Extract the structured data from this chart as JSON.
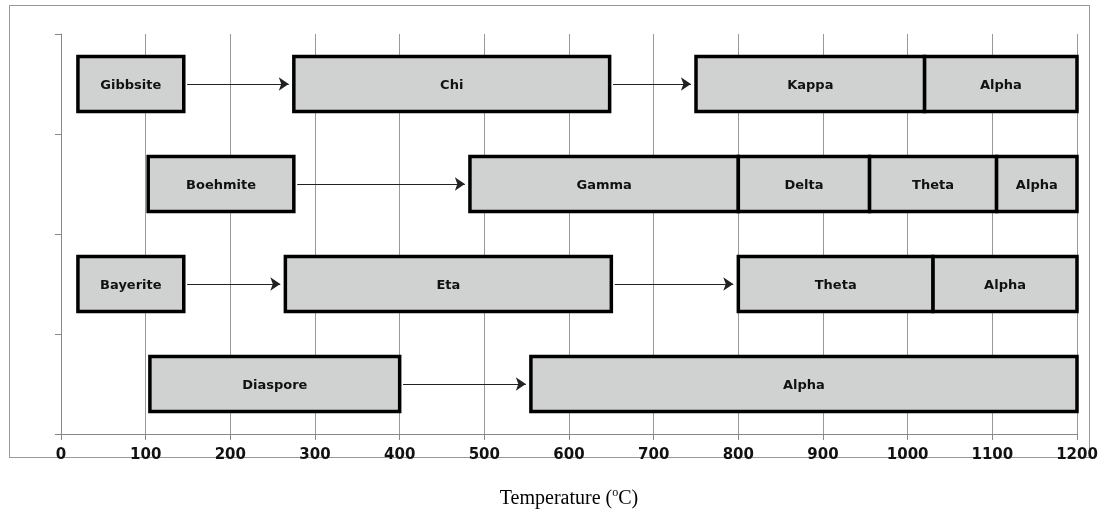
{
  "chart_data": {
    "type": "bar",
    "orientation": "horizontal",
    "xlabel": "Temperature ($^{o}$C)",
    "categories": [
      null,
      null,
      null,
      null
    ],
    "series": [
      {
        "color": "#d0d2d2",
        "base": [
          20,
          103,
          20,
          105
        ],
        "values": [
          125,
          172,
          125,
          295
        ],
        "value_labels": [
          "Gibbsite",
          "Boehmite",
          "Bayerite",
          "Diaspore"
        ]
      },
      {
        "color": "#d0d2d2",
        "base": [
          275,
          483,
          265,
          555
        ],
        "values": [
          373,
          317,
          385,
          645
        ],
        "value_labels": [
          "Chi",
          "Gamma",
          "Eta",
          "Alpha"
        ]
      },
      {
        "color": "#d0d2d2",
        "base": [
          750,
          800,
          800,
          null
        ],
        "values": [
          270,
          155,
          230,
          null
        ],
        "value_labels": [
          "Kappa",
          "Delta",
          "Theta",
          null
        ]
      },
      {
        "color": "#d0d2d2",
        "base": [
          1020,
          955,
          1030,
          null
        ],
        "values": [
          180,
          150,
          170,
          null
        ],
        "value_labels": [
          "Alpha",
          "Theta",
          "Alpha",
          null
        ]
      },
      {
        "color": "#d0d2d2",
        "base": [
          null,
          1105,
          null,
          null
        ],
        "values": [
          null,
          95,
          null,
          null
        ],
        "value_labels": [
          null,
          "Alpha",
          null,
          null
        ]
      }
    ],
    "xlim": [
      0,
      1200
    ],
    "xticks": [
      0,
      100,
      200,
      300,
      400,
      500,
      600,
      700,
      800,
      900,
      1000,
      1100,
      1200
    ],
    "grid": "x",
    "tick_labels": "x"
  }
}
